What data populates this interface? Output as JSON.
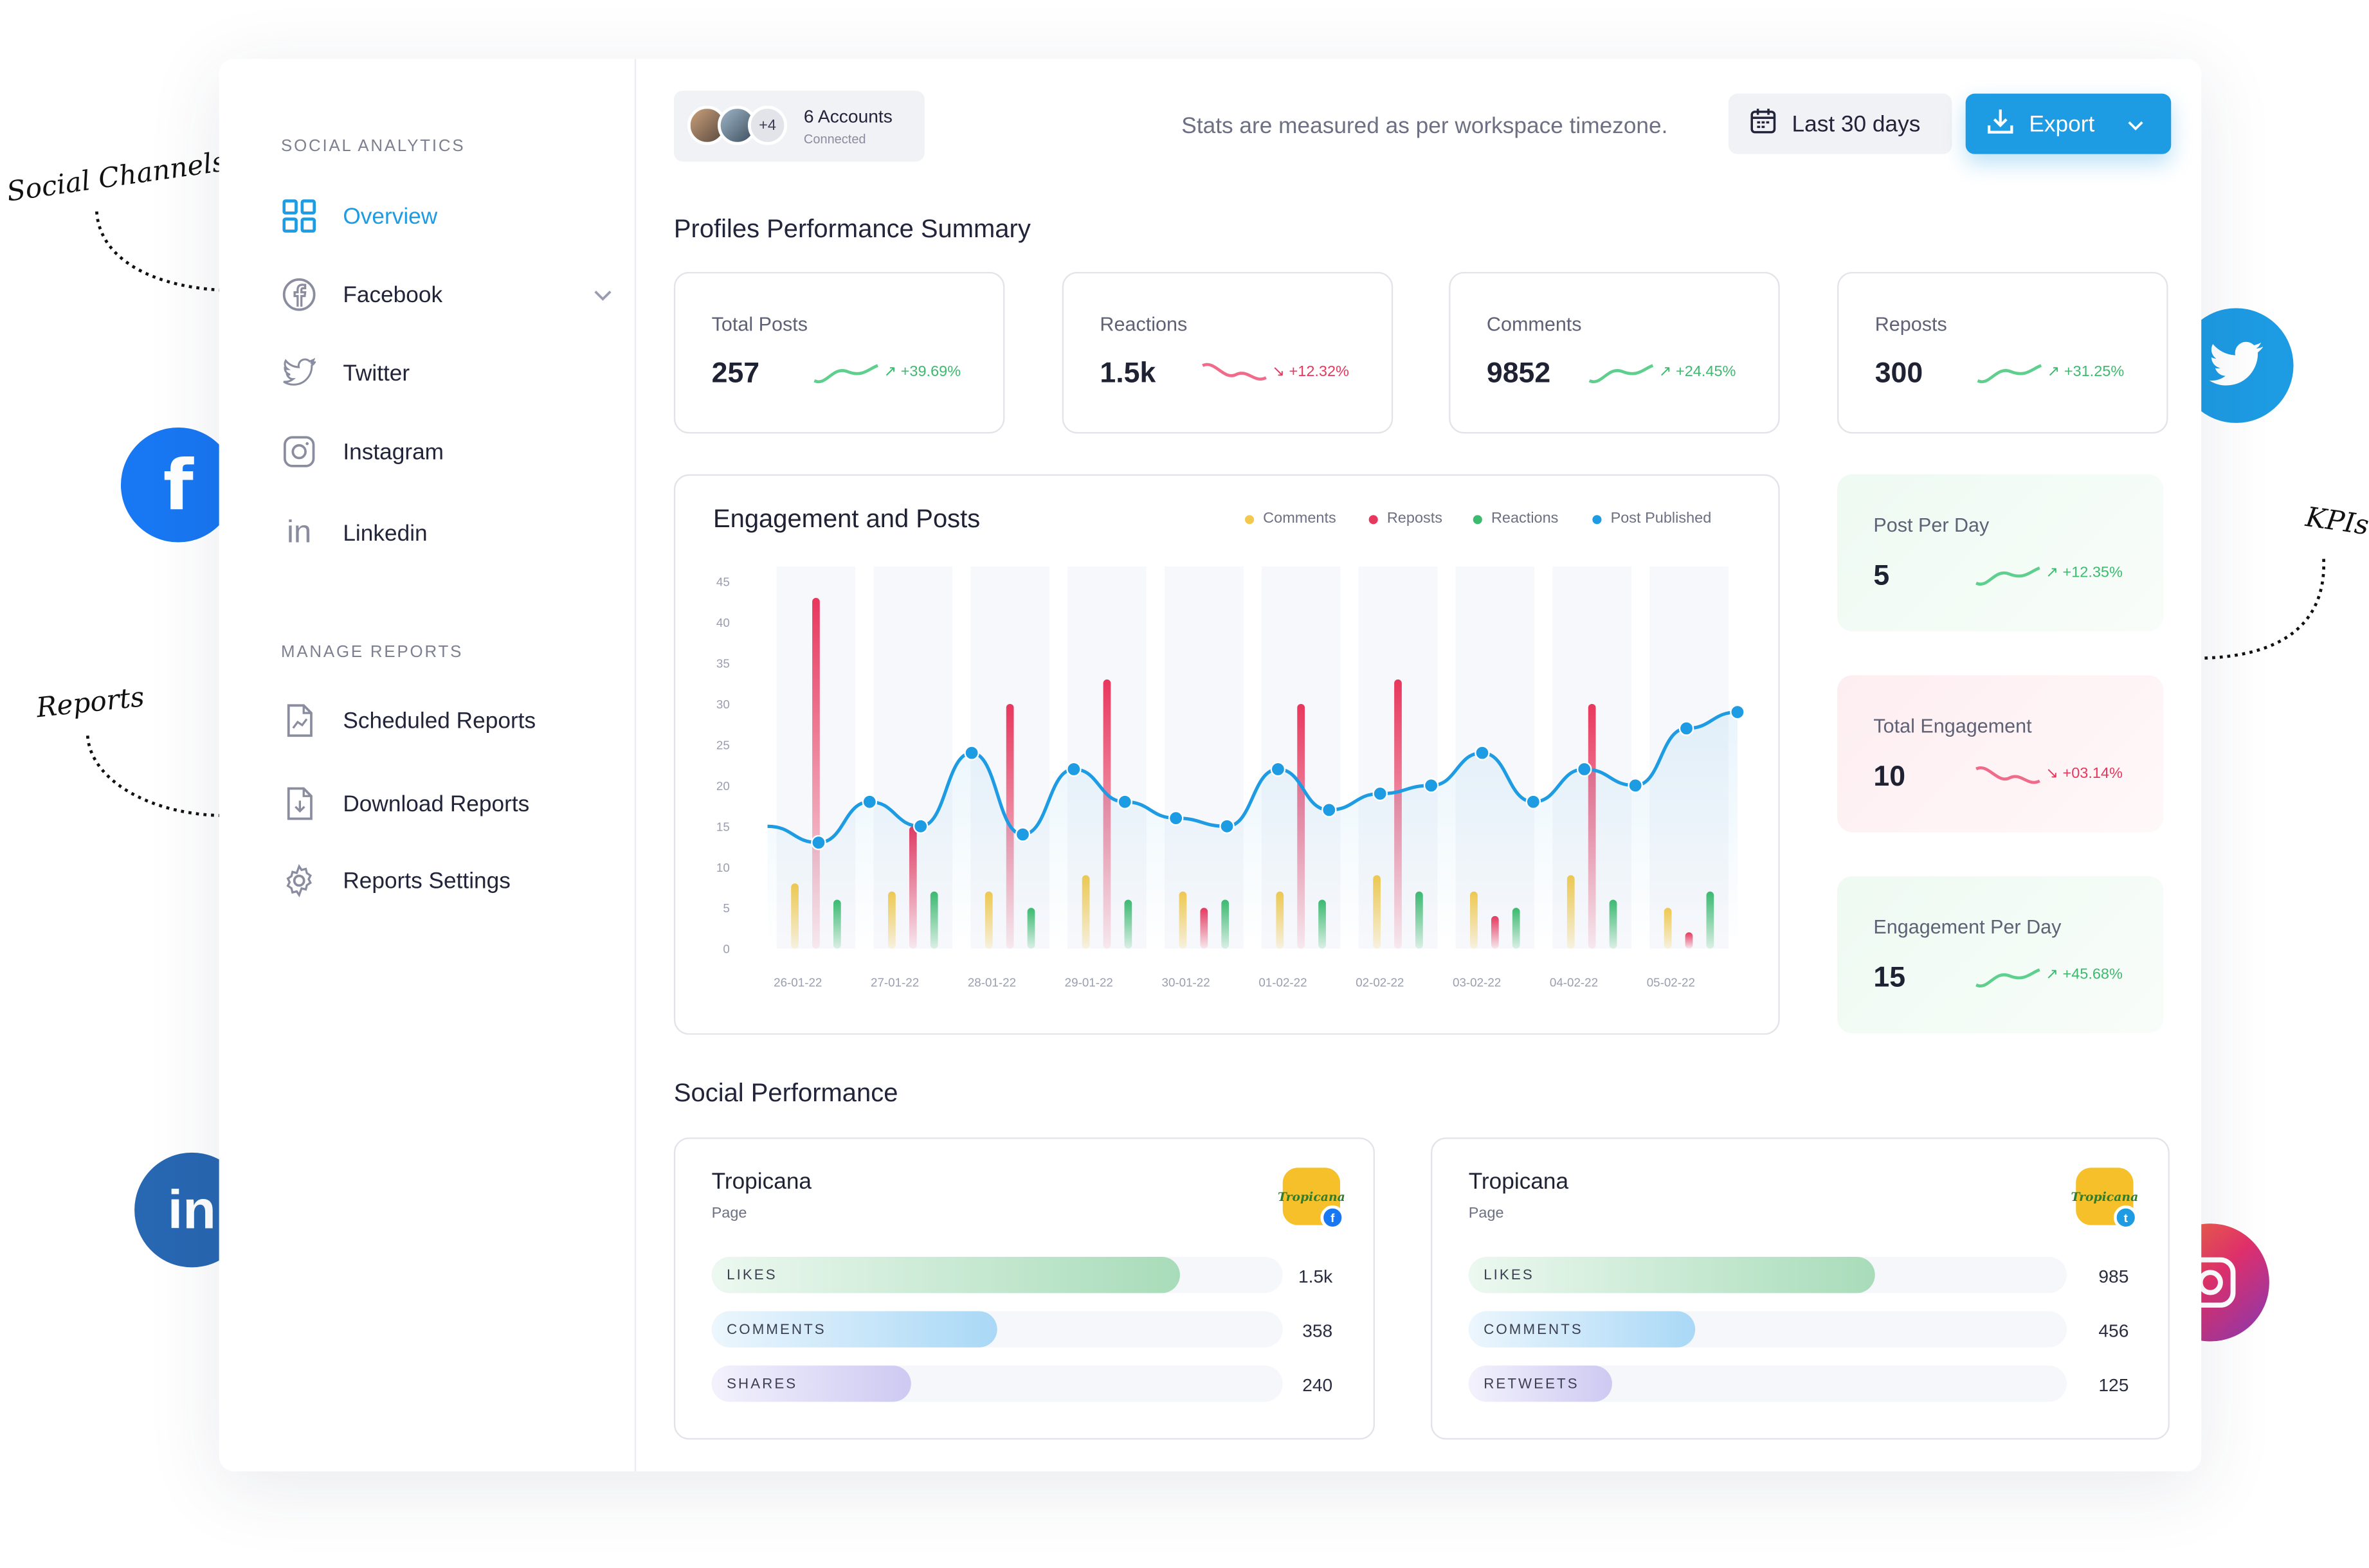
{
  "annotations": {
    "social_channels": "Social Channels",
    "reports": "Reports",
    "kpis": "KPIs"
  },
  "sidebar": {
    "heading_analytics": "SOCIAL ANALYTICS",
    "heading_reports": "MANAGE REPORTS",
    "items": [
      {
        "label": "Overview",
        "icon": "grid-icon"
      },
      {
        "label": "Facebook",
        "icon": "facebook-icon"
      },
      {
        "label": "Twitter",
        "icon": "twitter-icon"
      },
      {
        "label": "Instagram",
        "icon": "instagram-icon"
      },
      {
        "label": "Linkedin",
        "icon": "linkedin-icon"
      }
    ],
    "reports": [
      {
        "label": "Scheduled Reports",
        "icon": "report-chart-icon"
      },
      {
        "label": "Download Reports",
        "icon": "download-file-icon"
      },
      {
        "label": "Reports Settings",
        "icon": "gear-icon"
      }
    ]
  },
  "topbar": {
    "extra_accounts": "+4",
    "accounts": "6 Accounts",
    "accounts_sub": "Connected",
    "timezone_note": "Stats are measured as per workspace timezone.",
    "range": "Last 30 days",
    "export": "Export"
  },
  "summary": {
    "title": "Profiles Performance Summary",
    "stats": [
      {
        "label": "Total Posts",
        "value": "257",
        "delta": "+39.69%",
        "trend": "up"
      },
      {
        "label": "Reactions",
        "value": "1.5k",
        "delta": "+12.32%",
        "trend": "down"
      },
      {
        "label": "Comments",
        "value": "9852",
        "delta": "+24.45%",
        "trend": "up"
      },
      {
        "label": "Reposts",
        "value": "300",
        "delta": "+31.25%",
        "trend": "up"
      }
    ]
  },
  "kpis": [
    {
      "label": "Post Per Day",
      "value": "5",
      "delta": "+12.35%",
      "trend": "up"
    },
    {
      "label": "Total Engagement",
      "value": "10",
      "delta": "+03.14%",
      "trend": "down"
    },
    {
      "label": "Engagement Per Day",
      "value": "15",
      "delta": "+45.68%",
      "trend": "up"
    }
  ],
  "colors": {
    "accent": "#1d9be3",
    "comments": "#f2c94c",
    "reposts": "#e8375d",
    "reactions": "#3cba6e",
    "post_published": "#1d9be3"
  },
  "chart_data": {
    "type": "bar",
    "title": "Engagement and Posts",
    "legend": [
      "Comments",
      "Reposts",
      "Reactions",
      "Post Published"
    ],
    "legend_position": "top-right",
    "ylim": [
      0,
      45
    ],
    "yticks": [
      0,
      5,
      10,
      15,
      20,
      25,
      30,
      35,
      40,
      45
    ],
    "xticks": [
      "26-01-22",
      "27-01-22",
      "28-01-22",
      "29-01-22",
      "30-01-22",
      "01-02-22",
      "02-02-22",
      "03-02-22",
      "04-02-22",
      "05-02-22"
    ],
    "series": [
      {
        "name": "Comments",
        "values": [
          8,
          7,
          7,
          9,
          7,
          7,
          9,
          7,
          9,
          5
        ]
      },
      {
        "name": "Reposts",
        "values": [
          43,
          15,
          30,
          33,
          5,
          30,
          33,
          4,
          30,
          2
        ]
      },
      {
        "name": "Reactions",
        "values": [
          6,
          7,
          5,
          6,
          6,
          6,
          7,
          5,
          6,
          7
        ]
      },
      {
        "name": "Post Published",
        "values": [
          15,
          13,
          18,
          15,
          24,
          14,
          22,
          18,
          16,
          15,
          22,
          17,
          19,
          20,
          24,
          18,
          22,
          20,
          27,
          29
        ]
      }
    ]
  },
  "social": {
    "title": "Social Performance",
    "cards": [
      {
        "name": "Tropicana",
        "sub": "Page",
        "brand": "Tropicana",
        "network": "facebook-badge-icon",
        "rows": [
          {
            "label": "LIKES",
            "value": "1.5k",
            "fill": 0.82
          },
          {
            "label": "COMMENTS",
            "value": "358",
            "fill": 0.5
          },
          {
            "label": "SHARES",
            "value": "240",
            "fill": 0.35
          }
        ]
      },
      {
        "name": "Tropicana",
        "sub": "Page",
        "brand": "Tropicana",
        "network": "twitter-badge-icon",
        "rows": [
          {
            "label": "LIKES",
            "value": "985",
            "fill": 0.68
          },
          {
            "label": "COMMENTS",
            "value": "456",
            "fill": 0.38
          },
          {
            "label": "RETWEETS",
            "value": "125",
            "fill": 0.24
          }
        ]
      }
    ]
  }
}
